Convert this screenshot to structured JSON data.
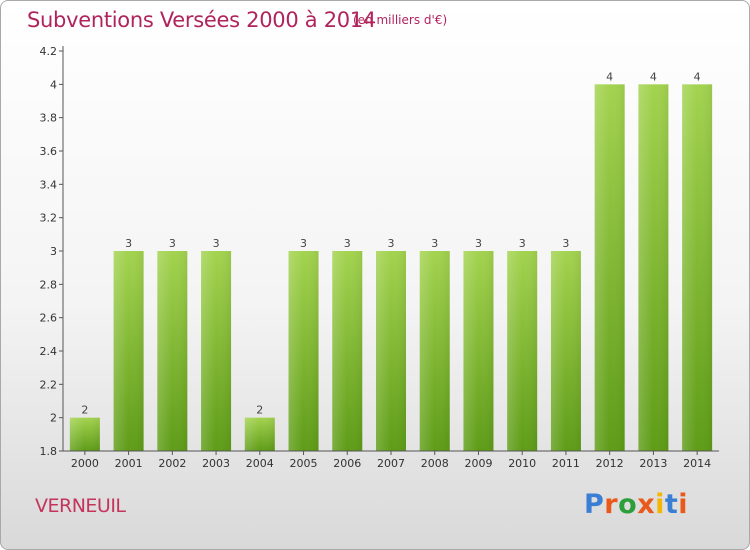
{
  "header": {
    "title": "Subventions Versées 2000 à 2014",
    "subtitle": "(en milliers d'€)"
  },
  "footer": {
    "commune": "VERNEUIL",
    "logo_text": "Proxiti",
    "logo_colors": [
      "#3a7fd4",
      "#e8591a",
      "#2c9e3a",
      "#e8591a",
      "#f2b705",
      "#3a7fd4",
      "#e8591a"
    ]
  },
  "colors": {
    "title": "#b0245d",
    "bar_light": "#9fd04a",
    "bar_dark": "#62a01a",
    "axis": "#555555"
  },
  "chart_data": {
    "type": "bar",
    "title": "Subventions Versées 2000 à 2014",
    "subtitle": "(en milliers d'€)",
    "categories": [
      "2000",
      "2001",
      "2002",
      "2003",
      "2004",
      "2005",
      "2006",
      "2007",
      "2008",
      "2009",
      "2010",
      "2011",
      "2012",
      "2013",
      "2014"
    ],
    "values": [
      2,
      3,
      3,
      3,
      2,
      3,
      3,
      3,
      3,
      3,
      3,
      3,
      4,
      4,
      4
    ],
    "data_labels": [
      "2",
      "3",
      "3",
      "3",
      "2",
      "3",
      "3",
      "3",
      "3",
      "3",
      "3",
      "3",
      "4",
      "4",
      "4"
    ],
    "yticks": [
      "1.8",
      "2",
      "2.2",
      "2.4",
      "2.6",
      "2.8",
      "3",
      "3.2",
      "3.4",
      "3.6",
      "3.8",
      "4",
      "4.2"
    ],
    "ylim": [
      1.8,
      4.2
    ],
    "xlabel": "",
    "ylabel": "",
    "grid": false,
    "legend": "none"
  }
}
